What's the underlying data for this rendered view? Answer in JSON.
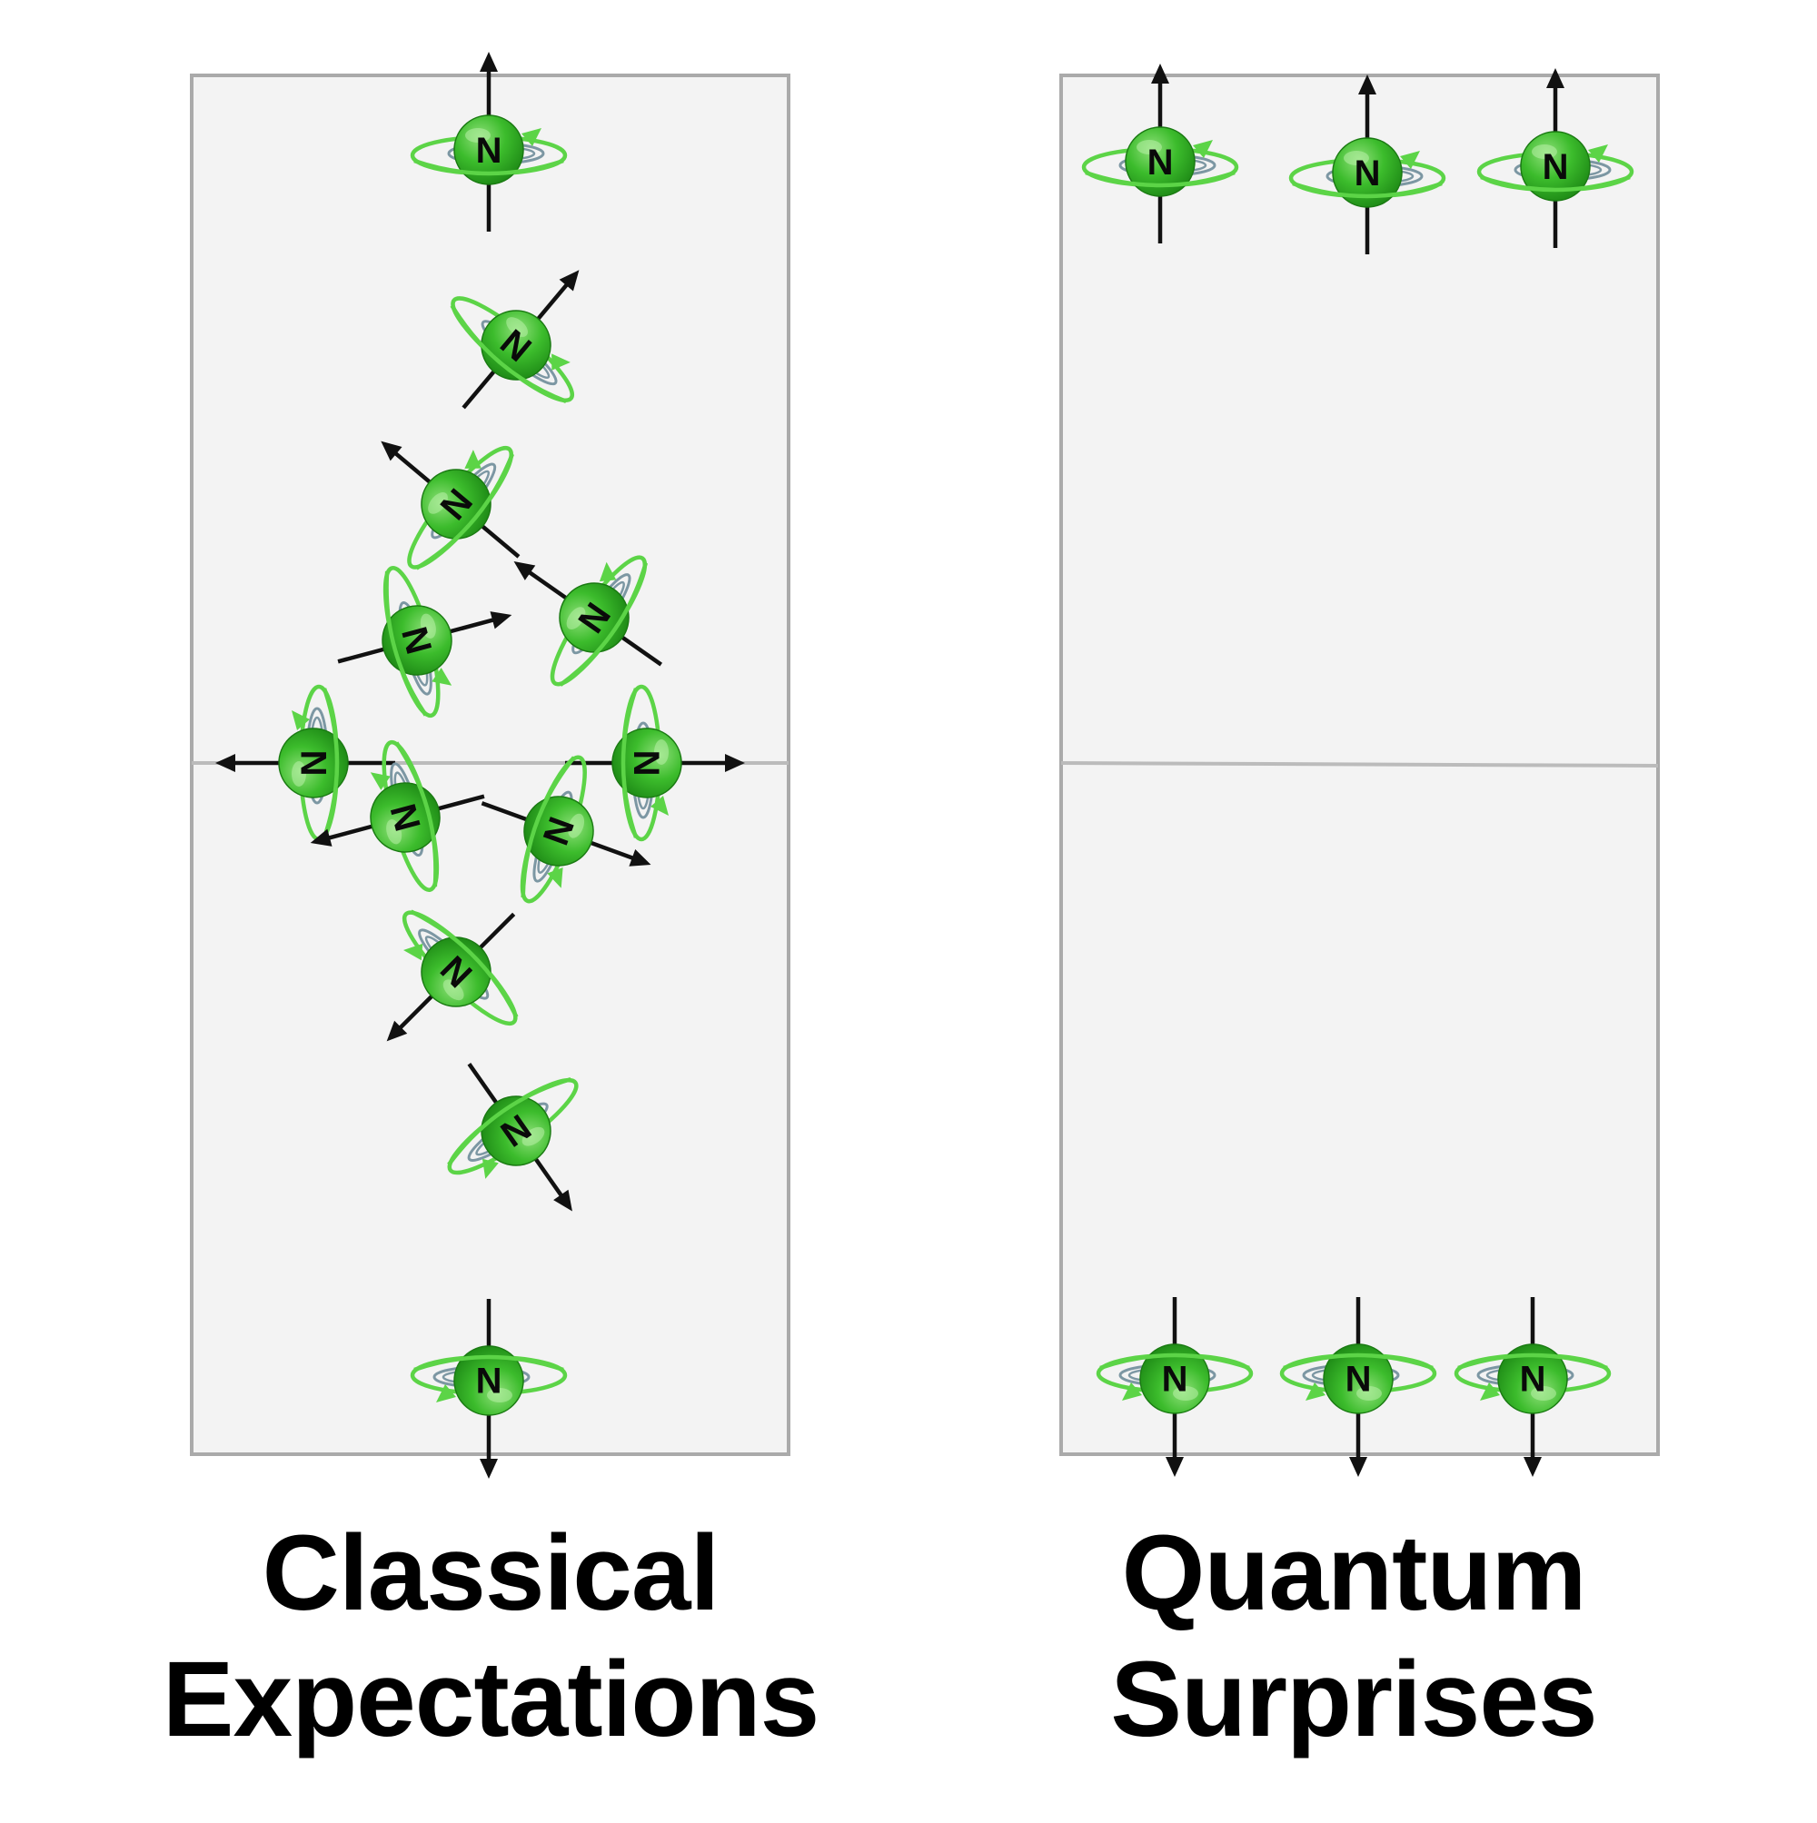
{
  "panels": {
    "left": {
      "caption_line1": "Classical",
      "caption_line2": "Expectations"
    },
    "right": {
      "caption_line1": "Quantum",
      "caption_line2": "Surprises"
    }
  },
  "spin_label": "N",
  "colors": {
    "panel_fill": "#f3f3f3",
    "panel_border": "#aaaaaa",
    "sphere": "#2aa81f",
    "sphere_highlight": "#8fe07a",
    "orbit": "#5cd447",
    "orbit_inner": "#7c97a3",
    "arrow": "#111111"
  },
  "icons": [
    "nucleus-spin-icon",
    "magnetic-moment-arrow-icon"
  ],
  "classical_spin_orientations_deg": [
    0,
    40,
    -50,
    75,
    -55,
    -90,
    90,
    -105,
    110,
    -135,
    145,
    180
  ],
  "quantum_spin_orientations": [
    "up",
    "up",
    "up",
    "down",
    "down",
    "down"
  ]
}
